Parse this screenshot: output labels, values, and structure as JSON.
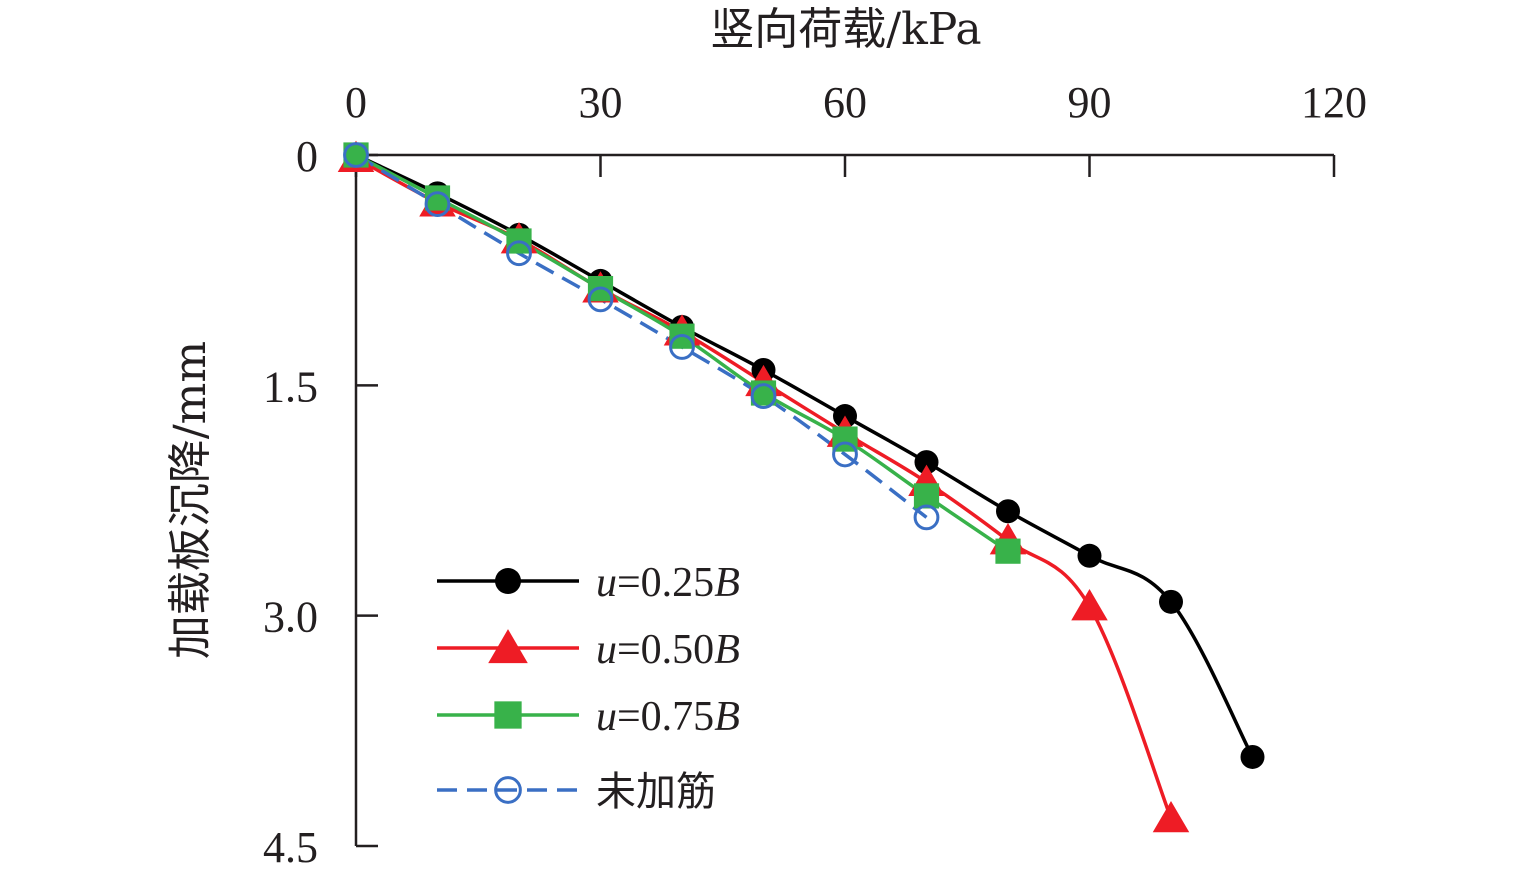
{
  "chart_data": {
    "type": "line",
    "title": "",
    "xlabel": "竖向荷载/kPa",
    "ylabel": "加载板沉降/mm",
    "x_axis_position": "top",
    "y_axis_inverted": true,
    "xlim": [
      0,
      120
    ],
    "ylim": [
      0,
      4.5
    ],
    "xticks": [
      0,
      30,
      60,
      90,
      120
    ],
    "xtick_labels": [
      "0",
      "30",
      "60",
      "90",
      "120"
    ],
    "yticks": [
      0,
      1.5,
      3.0,
      4.5
    ],
    "ytick_labels": [
      "0",
      "1.5",
      "3.0",
      "4.5"
    ],
    "legend_position": "lower-left",
    "series": [
      {
        "name": "u=0.25B",
        "label_var": "u",
        "label_eq": "=0.25",
        "label_suffix": "B",
        "color": "#000000",
        "marker": "filled-circle",
        "line_style": "solid",
        "x": [
          0,
          10,
          20,
          30,
          40,
          50,
          60,
          70,
          80,
          90,
          100,
          110
        ],
        "y": [
          0,
          0.25,
          0.52,
          0.82,
          1.12,
          1.4,
          1.7,
          2.0,
          2.32,
          2.61,
          2.91,
          3.92
        ]
      },
      {
        "name": "u=0.50B",
        "label_var": "u",
        "label_eq": "=0.50",
        "label_suffix": "B",
        "color": "#ee1c25",
        "marker": "filled-triangle",
        "line_style": "solid",
        "x": [
          0,
          10,
          20,
          30,
          40,
          50,
          60,
          70,
          80,
          90,
          100
        ],
        "y": [
          0.02,
          0.31,
          0.55,
          0.87,
          1.15,
          1.48,
          1.81,
          2.13,
          2.51,
          2.94,
          4.32
        ]
      },
      {
        "name": "u=0.75B",
        "label_var": "u",
        "label_eq": "=0.75",
        "label_suffix": "B",
        "color": "#38b24a",
        "marker": "filled-square",
        "line_style": "solid",
        "x": [
          0,
          10,
          20,
          30,
          40,
          50,
          60,
          70,
          80
        ],
        "y": [
          0,
          0.28,
          0.56,
          0.87,
          1.18,
          1.55,
          1.85,
          2.22,
          2.58
        ]
      },
      {
        "name": "未加筋",
        "label_var": "",
        "label_eq": "未加筋",
        "label_suffix": "",
        "color": "#3a6fc4",
        "marker": "open-circle",
        "line_style": "dashed",
        "x": [
          0,
          10,
          20,
          30,
          40,
          50,
          60,
          70
        ],
        "y": [
          0,
          0.32,
          0.64,
          0.94,
          1.25,
          1.57,
          1.95,
          2.36
        ]
      }
    ]
  }
}
